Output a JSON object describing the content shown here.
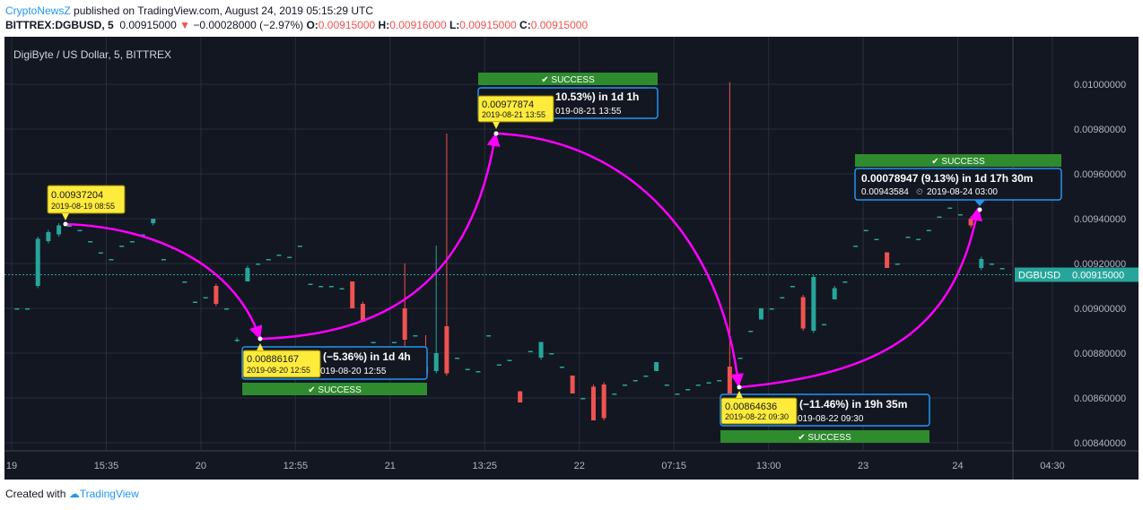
{
  "header": {
    "brand": "CryptoNewsZ",
    "published": " published on TradingView.com, August 24, 2019 05:15:29 UTC"
  },
  "ohlc": {
    "symbol": "BITTREX:DGBUSD, 5",
    "last": "0.00915000",
    "arrow": "▼",
    "change": "−0.00028000 (−2.97%)",
    "o_label": "O:",
    "o": "0.00915000",
    "h_label": "H:",
    "h": "0.00916000",
    "l_label": "L:",
    "l": "0.00915000",
    "c_label": "C:",
    "c": "0.00915000"
  },
  "footer": {
    "created": "Created with",
    "tradingview": "TradingView"
  },
  "colors": {
    "background": "#131722",
    "grid": "#2a2e39",
    "up": "#26a69a",
    "down": "#ef5350",
    "arrow": "#ff00ff",
    "callout": "#ffeb3b",
    "info_border": "#2196f3",
    "success": "#2e8b2e",
    "price_line": "#26a69a"
  },
  "chart_data": {
    "type": "candlestick",
    "title": "DigiByte / US Dollar, 5, BITTREX",
    "ylim": [
      0.0083,
      0.0102
    ],
    "y_ticks": [
      "0.00840000",
      "0.00860000",
      "0.00880000",
      "0.00900000",
      "0.00920000",
      "0.00940000",
      "0.00960000",
      "0.00980000",
      "0.01000000"
    ],
    "x_ticks": [
      "19",
      "15:35",
      "20",
      "12:55",
      "21",
      "13:25",
      "22",
      "07:15",
      "13:00",
      "23",
      "24",
      "04:30"
    ],
    "current_price": {
      "label": "DGBUSD",
      "value": "0.00915000"
    },
    "candles": [
      [
        0.009,
        0.009,
        0.009,
        0.009
      ],
      [
        0.009,
        0.009,
        0.009,
        0.009
      ],
      [
        0.0091,
        0.00931,
        0.00909,
        0.00932
      ],
      [
        0.0093,
        0.00934,
        0.00929,
        0.00935
      ],
      [
        0.00933,
        0.00937,
        0.00932,
        0.00938
      ],
      [
        0.00937,
        0.00937,
        0.00937,
        0.00937
      ],
      [
        0.00935,
        0.00935,
        0.00935,
        0.00935
      ],
      [
        0.0093,
        0.0093,
        0.0093,
        0.0093
      ],
      [
        0.00925,
        0.00925,
        0.00925,
        0.00925
      ],
      [
        0.00922,
        0.00922,
        0.00922,
        0.00922
      ],
      [
        0.00928,
        0.00928,
        0.00928,
        0.00928
      ],
      [
        0.0093,
        0.0093,
        0.0093,
        0.0093
      ],
      [
        0.00933,
        0.00933,
        0.00933,
        0.00933
      ],
      [
        0.00938,
        0.0094,
        0.00937,
        0.0094
      ],
      [
        0.00922,
        0.00922,
        0.00922,
        0.00922
      ],
      [
        0.00927,
        0.00927,
        0.00927,
        0.00927
      ],
      [
        0.00912,
        0.00912,
        0.00912,
        0.00912
      ],
      [
        0.00903,
        0.00903,
        0.00903,
        0.00903
      ],
      [
        0.00905,
        0.00905,
        0.00905,
        0.00905
      ],
      [
        0.0091,
        0.00902,
        0.00901,
        0.00911
      ],
      [
        0.009,
        0.009,
        0.009,
        0.009
      ],
      [
        0.00886,
        0.00886,
        0.00885,
        0.00887
      ],
      [
        0.00912,
        0.00918,
        0.00912,
        0.00919
      ],
      [
        0.0092,
        0.0092,
        0.0092,
        0.0092
      ],
      [
        0.00922,
        0.00922,
        0.00922,
        0.00922
      ],
      [
        0.00924,
        0.00924,
        0.00924,
        0.00924
      ],
      [
        0.00923,
        0.00923,
        0.00923,
        0.00923
      ],
      [
        0.00928,
        0.00928,
        0.00928,
        0.00928
      ],
      [
        0.00911,
        0.00911,
        0.00911,
        0.00911
      ],
      [
        0.0091,
        0.0091,
        0.0091,
        0.0091
      ],
      [
        0.0091,
        0.0091,
        0.0091,
        0.0091
      ],
      [
        0.00909,
        0.00909,
        0.00909,
        0.00909
      ],
      [
        0.00912,
        0.009,
        0.009,
        0.00912
      ],
      [
        0.00902,
        0.00894,
        0.00894,
        0.00903
      ],
      [
        0.00885,
        0.00885,
        0.00885,
        0.00885
      ],
      [
        0.0087,
        0.0087,
        0.0087,
        0.0087
      ],
      [
        0.00885,
        0.00885,
        0.00885,
        0.00885
      ],
      [
        0.009,
        0.00886,
        0.00882,
        0.0092
      ],
      [
        0.00888,
        0.00888,
        0.00888,
        0.00888
      ],
      [
        0.00874,
        0.00871,
        0.0087,
        0.00888
      ],
      [
        0.00872,
        0.0088,
        0.00871,
        0.00928
      ],
      [
        0.00892,
        0.00871,
        0.0087,
        0.00978
      ],
      [
        0.00878,
        0.00878,
        0.00878,
        0.00878
      ],
      [
        0.00873,
        0.00873,
        0.00873,
        0.00873
      ],
      [
        0.00872,
        0.00872,
        0.00872,
        0.00872
      ],
      [
        0.00888,
        0.00888,
        0.00888,
        0.00888
      ],
      [
        0.00875,
        0.00875,
        0.00875,
        0.00875
      ],
      [
        0.00877,
        0.00877,
        0.00877,
        0.00877
      ],
      [
        0.00863,
        0.00858,
        0.00858,
        0.00863
      ],
      [
        0.00881,
        0.00881,
        0.00881,
        0.00881
      ],
      [
        0.00878,
        0.00885,
        0.00877,
        0.00885
      ],
      [
        0.0088,
        0.0088,
        0.0088,
        0.0088
      ],
      [
        0.00874,
        0.00874,
        0.00874,
        0.00874
      ],
      [
        0.0087,
        0.00862,
        0.00862,
        0.0087
      ],
      [
        0.0086,
        0.0086,
        0.0086,
        0.0086
      ],
      [
        0.00865,
        0.0085,
        0.0085,
        0.00866
      ],
      [
        0.00866,
        0.00851,
        0.0085,
        0.00867
      ],
      [
        0.00862,
        0.00862,
        0.00862,
        0.00862
      ],
      [
        0.00866,
        0.00866,
        0.00866,
        0.00866
      ],
      [
        0.00868,
        0.00868,
        0.00868,
        0.00868
      ],
      [
        0.0087,
        0.0087,
        0.0087,
        0.0087
      ],
      [
        0.00872,
        0.00876,
        0.00872,
        0.00876
      ],
      [
        0.00866,
        0.00866,
        0.00866,
        0.00866
      ],
      [
        0.00862,
        0.00862,
        0.00862,
        0.00862
      ],
      [
        0.00864,
        0.00864,
        0.00864,
        0.00864
      ],
      [
        0.00866,
        0.00866,
        0.00866,
        0.00866
      ],
      [
        0.00867,
        0.00867,
        0.00867,
        0.00867
      ],
      [
        0.00868,
        0.00868,
        0.00868,
        0.00868
      ],
      [
        0.00874,
        0.00862,
        0.00862,
        0.01001
      ],
      [
        0.00878,
        0.00878,
        0.00878,
        0.00878
      ],
      [
        0.0089,
        0.0089,
        0.0089,
        0.0089
      ],
      [
        0.00895,
        0.009,
        0.00895,
        0.009
      ],
      [
        0.009,
        0.009,
        0.009,
        0.009
      ],
      [
        0.00905,
        0.00905,
        0.00905,
        0.00905
      ],
      [
        0.0091,
        0.0091,
        0.0091,
        0.0091
      ],
      [
        0.00905,
        0.00891,
        0.0089,
        0.00906
      ],
      [
        0.0089,
        0.00914,
        0.00889,
        0.00915
      ],
      [
        0.00893,
        0.00893,
        0.00893,
        0.00893
      ],
      [
        0.00904,
        0.00909,
        0.00904,
        0.0091
      ],
      [
        0.00912,
        0.00912,
        0.00912,
        0.00912
      ],
      [
        0.00928,
        0.00928,
        0.00928,
        0.00928
      ],
      [
        0.00935,
        0.00935,
        0.00935,
        0.00935
      ],
      [
        0.00931,
        0.00931,
        0.00931,
        0.00931
      ],
      [
        0.00925,
        0.00918,
        0.00918,
        0.00925
      ],
      [
        0.0092,
        0.0092,
        0.0092,
        0.0092
      ],
      [
        0.00932,
        0.00932,
        0.00932,
        0.00932
      ],
      [
        0.00931,
        0.00931,
        0.00931,
        0.00931
      ],
      [
        0.00935,
        0.00935,
        0.00935,
        0.00935
      ],
      [
        0.00941,
        0.00941,
        0.00941,
        0.00941
      ],
      [
        0.00945,
        0.00945,
        0.00945,
        0.00945
      ],
      [
        0.00942,
        0.00942,
        0.00942,
        0.00942
      ],
      [
        0.0094,
        0.00937,
        0.00936,
        0.00941
      ],
      [
        0.00918,
        0.00922,
        0.00917,
        0.00923
      ],
      [
        0.0092,
        0.0092,
        0.0092,
        0.0092
      ],
      [
        0.00918,
        0.00918,
        0.00918,
        0.00918
      ]
    ],
    "annotations": [
      {
        "callout_price": "0.00937204",
        "callout_time": "2019-08-19 08:55"
      },
      {
        "callout_price": "0.00886167",
        "callout_time": "2019-08-20 12:55",
        "info_main": "(−5.36%) in 1d 4h",
        "info_sub": "019-08-20  12:55",
        "status": "SUCCESS"
      },
      {
        "callout_price": "0.00977874",
        "callout_time": "2019-08-21 13:55",
        "info_main": "10.53%) in 1d 1h",
        "info_sub": "019-08-21  13:55",
        "status": "SUCCESS"
      },
      {
        "callout_price": "0.00864636",
        "callout_time": "2019-08-22 09:30",
        "info_main": "(−11.46%) in 19h 35m",
        "info_sub": "019-08-22  09:30",
        "status": "SUCCESS"
      },
      {
        "info_main": "0.00078947 (9.13%) in 1d 17h 30m",
        "info_sub_price": "0.00943584",
        "info_sub_time": "2019-08-24  03:00",
        "status": "SUCCESS"
      }
    ]
  }
}
